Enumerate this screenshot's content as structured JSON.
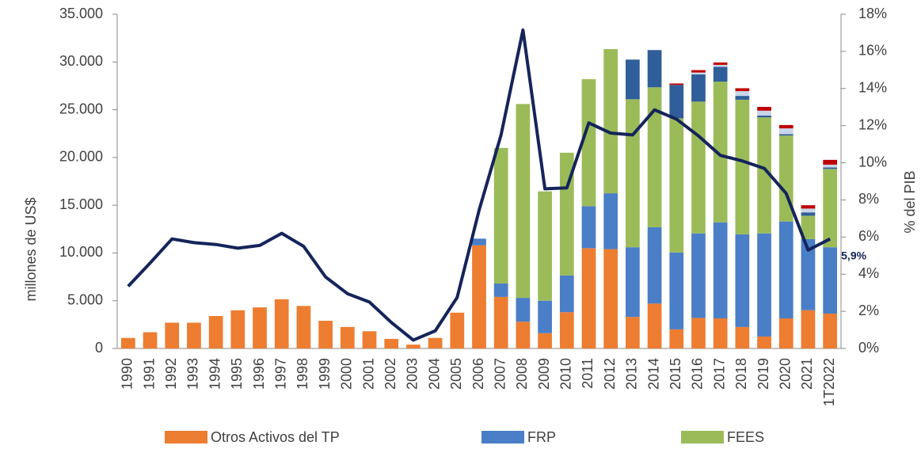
{
  "chart_data": {
    "type": "bar",
    "categories": [
      "1990",
      "1991",
      "1992",
      "1993",
      "1994",
      "1995",
      "1996",
      "1997",
      "1998",
      "1999",
      "2000",
      "2001",
      "2002",
      "2003",
      "2004",
      "2005",
      "2006",
      "2007",
      "2008",
      "2009",
      "2010",
      "2011",
      "2012",
      "2013",
      "2014",
      "2015",
      "2016",
      "2017",
      "2018",
      "2019",
      "2020",
      "2021",
      "1T2022"
    ],
    "ylabel": "millones de US$",
    "y2label": "% del PIB",
    "ylim": [
      0,
      35000
    ],
    "yticks": [
      0,
      {
        "value": 5000,
        "label": "5.000"
      },
      {
        "value": 10000,
        "label": "10.000"
      },
      {
        "value": 15000,
        "label": "15.000"
      },
      {
        "value": 20000,
        "label": "20.000"
      },
      {
        "value": 25000,
        "label": "25.000"
      },
      {
        "value": 30000,
        "label": "30.000"
      },
      {
        "value": 35000,
        "label": "35.000"
      }
    ],
    "y2lim": [
      0,
      18
    ],
    "y2ticks": [
      {
        "value": 0,
        "label": "0%"
      },
      {
        "value": 2,
        "label": "2%"
      },
      {
        "value": 4,
        "label": "4%"
      },
      {
        "value": 6,
        "label": "6%"
      },
      {
        "value": 8,
        "label": "8%"
      },
      {
        "value": 10,
        "label": "10%"
      },
      {
        "value": 12,
        "label": "12%"
      },
      {
        "value": 14,
        "label": "14%"
      },
      {
        "value": 16,
        "label": "16%"
      },
      {
        "value": 18,
        "label": "18%"
      }
    ],
    "series": [
      {
        "name": "Otros Activos del TP",
        "color": "#ED7D31",
        "values": [
          1100,
          1700,
          2700,
          2700,
          3400,
          4000,
          4300,
          5150,
          4450,
          2900,
          2250,
          1800,
          1000,
          400,
          1100,
          3750,
          10800,
          5400,
          2800,
          1600,
          3800,
          10500,
          10400,
          3300,
          4700,
          2000,
          3200,
          3150,
          2250,
          1250,
          3150,
          4000,
          3650
        ]
      },
      {
        "name": "FRP",
        "color": "#4A7EC7",
        "values": [
          null,
          null,
          null,
          null,
          null,
          null,
          null,
          null,
          null,
          null,
          null,
          null,
          null,
          null,
          null,
          null,
          700,
          1400,
          2500,
          3400,
          3850,
          4400,
          5850,
          7300,
          8000,
          8050,
          8850,
          10050,
          9700,
          10800,
          10150,
          7450,
          6950
        ]
      },
      {
        "name": "FEES",
        "color": "#9BBB59",
        "values": [
          null,
          null,
          null,
          null,
          null,
          null,
          null,
          null,
          null,
          null,
          null,
          null,
          null,
          null,
          null,
          null,
          null,
          14200,
          20300,
          11450,
          12850,
          13300,
          15100,
          15500,
          14650,
          14050,
          13800,
          14750,
          14100,
          12150,
          9000,
          2450,
          8200
        ]
      },
      {
        "color": "#2F5E9A",
        "values": [
          null,
          null,
          null,
          null,
          null,
          null,
          null,
          null,
          null,
          null,
          null,
          null,
          null,
          null,
          null,
          null,
          null,
          null,
          null,
          null,
          null,
          null,
          null,
          4150,
          3900,
          3500,
          2850,
          1550,
          400,
          200,
          150,
          350,
          150
        ]
      },
      {
        "color": "#C9D5EA",
        "values": [
          null,
          null,
          null,
          null,
          null,
          null,
          null,
          null,
          null,
          null,
          null,
          null,
          null,
          null,
          null,
          null,
          null,
          null,
          null,
          null,
          null,
          null,
          null,
          null,
          null,
          null,
          200,
          200,
          500,
          500,
          600,
          400,
          300
        ]
      },
      {
        "color": "#C00000",
        "values": [
          null,
          null,
          null,
          null,
          null,
          null,
          null,
          null,
          null,
          null,
          null,
          null,
          null,
          null,
          null,
          null,
          null,
          null,
          null,
          null,
          null,
          null,
          null,
          null,
          null,
          150,
          250,
          250,
          300,
          400,
          350,
          350,
          500
        ]
      },
      {
        "type": "line",
        "axis": "y2",
        "color": "#15245A",
        "values": [
          3.35,
          4.6,
          5.9,
          5.7,
          5.6,
          5.4,
          5.55,
          6.2,
          5.5,
          3.85,
          2.95,
          2.5,
          1.4,
          0.45,
          0.95,
          2.75,
          7.45,
          11.5,
          17.15,
          8.6,
          8.65,
          12.15,
          11.6,
          11.5,
          12.85,
          12.35,
          11.45,
          10.4,
          10.1,
          9.7,
          8.35,
          5.3,
          5.9
        ],
        "value_labels": [
          null,
          null,
          null,
          null,
          null,
          null,
          null,
          null,
          null,
          null,
          null,
          null,
          null,
          null,
          null,
          null,
          null,
          null,
          null,
          null,
          null,
          null,
          null,
          null,
          null,
          null,
          null,
          null,
          null,
          null,
          null,
          null,
          "5,9%"
        ]
      }
    ]
  }
}
